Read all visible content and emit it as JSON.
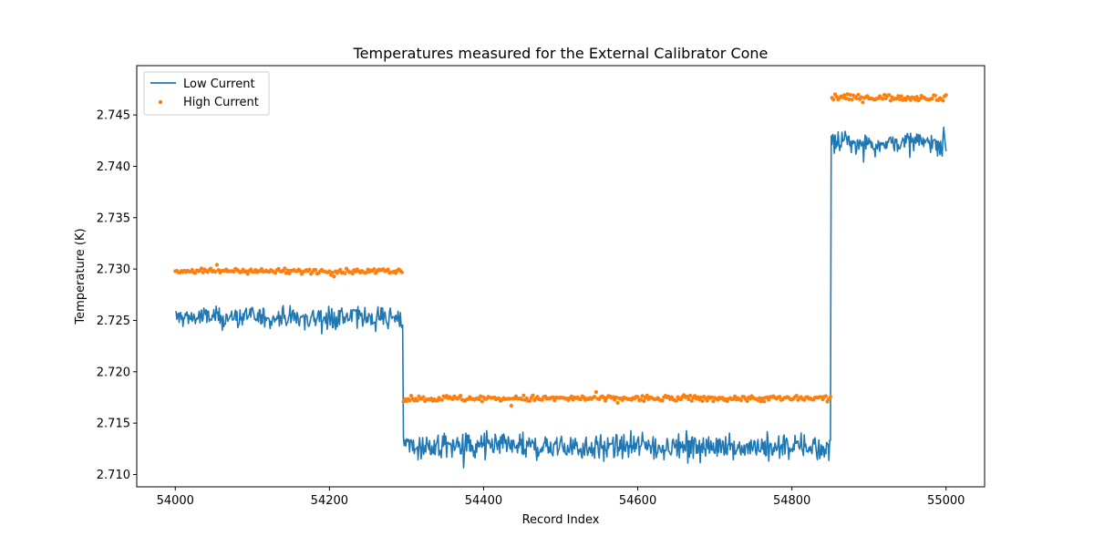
{
  "chart_data": {
    "type": "line+scatter",
    "title": "Temperatures measured for the External Calibrator Cone",
    "xlabel": "Record Index",
    "ylabel": "Temperature (K)",
    "xlim": [
      53950,
      55050
    ],
    "ylim": [
      2.7088,
      2.7498
    ],
    "xticks": [
      54000,
      54200,
      54400,
      54600,
      54800,
      55000
    ],
    "xtick_labels": [
      "54000",
      "54200",
      "54400",
      "54600",
      "54800",
      "55000"
    ],
    "yticks": [
      2.71,
      2.715,
      2.72,
      2.725,
      2.73,
      2.735,
      2.74,
      2.745
    ],
    "ytick_labels": [
      "2.710",
      "2.715",
      "2.720",
      "2.725",
      "2.730",
      "2.735",
      "2.740",
      "2.745"
    ],
    "legend": {
      "placement": "top-left",
      "entries": [
        "Low Current",
        "High Current"
      ]
    },
    "series": [
      {
        "name": "Low Current",
        "kind": "line",
        "color": "#1f77b4",
        "x_start": 54000,
        "x_end": 55000,
        "segments": [
          {
            "x_from": 54000,
            "x_to": 54295,
            "mean": 2.7253,
            "noise": 0.0006
          },
          {
            "x_from": 54296,
            "x_to": 54850,
            "mean": 2.7127,
            "noise": 0.0007
          },
          {
            "x_from": 54851,
            "x_to": 55000,
            "mean": 2.7423,
            "noise": 0.0006
          }
        ]
      },
      {
        "name": "High Current",
        "kind": "scatter",
        "color": "#ff7f0e",
        "x_start": 54000,
        "x_end": 55000,
        "segments": [
          {
            "x_from": 54000,
            "x_to": 54295,
            "mean": 2.7298,
            "noise": 0.00012
          },
          {
            "x_from": 54296,
            "x_to": 54850,
            "mean": 2.7174,
            "noise": 0.00015
          },
          {
            "x_from": 54851,
            "x_to": 55000,
            "mean": 2.7467,
            "noise": 0.00015
          }
        ]
      }
    ]
  },
  "colors": {
    "low_current": "#1f77b4",
    "high_current": "#ff7f0e"
  }
}
